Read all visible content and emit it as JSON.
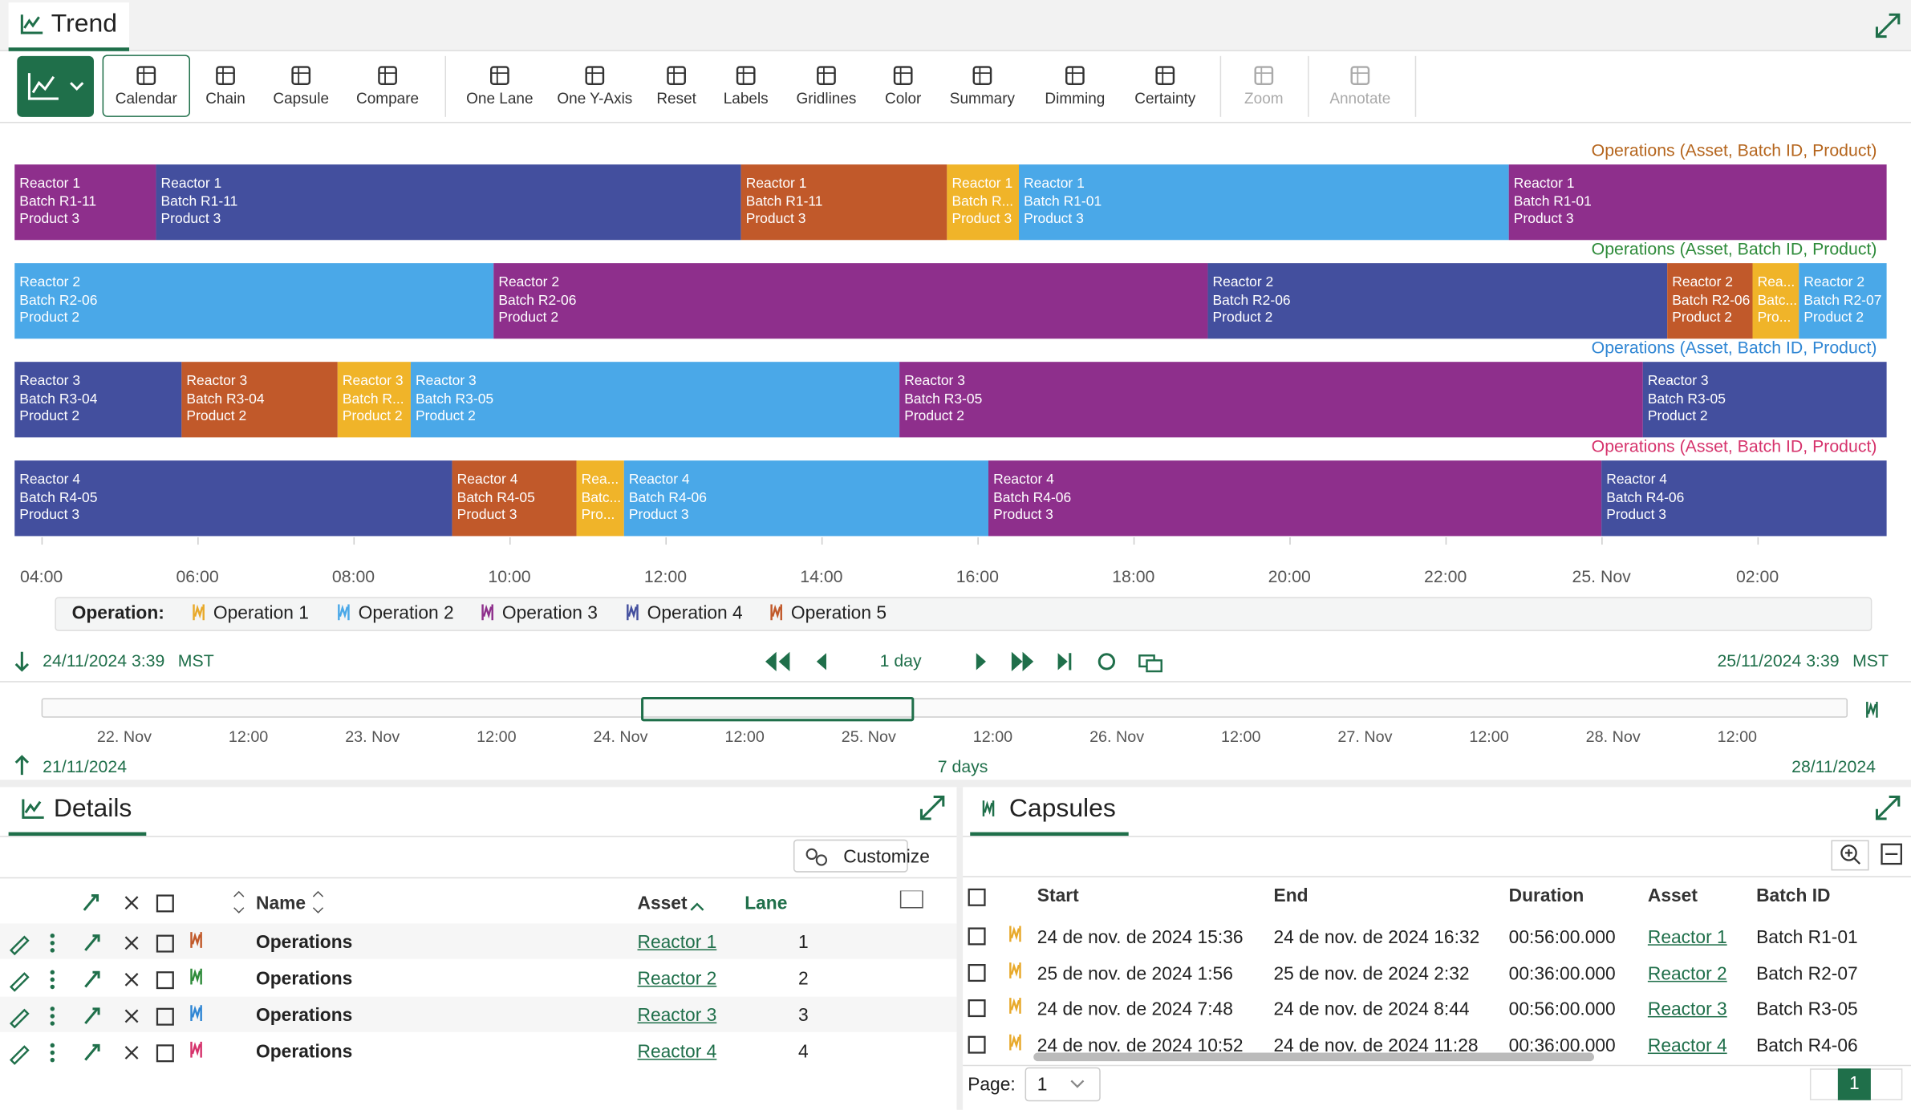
{
  "trend": {
    "title": "Trend",
    "toolbar": [
      "Calendar",
      "Chain",
      "Capsule",
      "Compare",
      "One Lane",
      "One Y-Axis",
      "Reset",
      "Labels",
      "Gridlines",
      "Color",
      "Summary",
      "Dimming",
      "Certainty",
      "Zoom",
      "Annotate"
    ],
    "lanes": [
      {
        "label": "Operations (Asset, Batch ID, Product)",
        "color": "#b5651d",
        "capsules": [
          {
            "lines": [
              "Reactor 1",
              "Batch R1-11",
              "Product 3"
            ],
            "color": "#8e2f8c"
          },
          {
            "lines": [
              "Reactor 1",
              "Batch R1-11",
              "Product 3"
            ],
            "color": "#434f9e"
          },
          {
            "lines": [
              "Reactor 1",
              "Batch R1-11",
              "Product 3"
            ],
            "color": "#c1592a"
          },
          {
            "lines": [
              "Reactor 1",
              "Batch R...",
              "Product 3"
            ],
            "color": "#f0b429"
          },
          {
            "lines": [
              "Reactor 1",
              "Batch R1-01",
              "Product 3"
            ],
            "color": "#4aa8e8"
          },
          {
            "lines": [
              "Reactor 1",
              "Batch R1-01",
              "Product 3"
            ],
            "color": "#8e2f8c"
          }
        ]
      },
      {
        "label": "Operations (Asset, Batch ID, Product)",
        "color": "#2e8b3a",
        "capsules": [
          {
            "lines": [
              "Reactor 2",
              "Batch R2-06",
              "Product 2"
            ],
            "color": "#4aa8e8"
          },
          {
            "lines": [
              "Reactor 2",
              "Batch R2-06",
              "Product 2"
            ],
            "color": "#8e2f8c"
          },
          {
            "lines": [
              "Reactor 2",
              "Batch R2-06",
              "Product 2"
            ],
            "color": "#434f9e"
          },
          {
            "lines": [
              "Reactor 2",
              "Batch R2-06",
              "Product 2"
            ],
            "color": "#c1592a"
          },
          {
            "lines": [
              "Rea...",
              "Batc...",
              "Pro..."
            ],
            "color": "#f0b429"
          },
          {
            "lines": [
              "Reactor 2",
              "Batch R2-07",
              "Product 2"
            ],
            "color": "#4aa8e8"
          }
        ]
      },
      {
        "label": "Operations (Asset, Batch ID, Product)",
        "color": "#2f86d4",
        "capsules": [
          {
            "lines": [
              "Reactor 3",
              "Batch R3-04",
              "Product 2"
            ],
            "color": "#434f9e"
          },
          {
            "lines": [
              "Reactor 3",
              "Batch R3-04",
              "Product 2"
            ],
            "color": "#c1592a"
          },
          {
            "lines": [
              "Reactor 3",
              "Batch R...",
              "Product 2"
            ],
            "color": "#f0b429"
          },
          {
            "lines": [
              "Reactor 3",
              "Batch R3-05",
              "Product 2"
            ],
            "color": "#4aa8e8"
          },
          {
            "lines": [
              "Reactor 3",
              "Batch R3-05",
              "Product 2"
            ],
            "color": "#8e2f8c"
          },
          {
            "lines": [
              "Reactor 3",
              "Batch R3-05",
              "Product 2"
            ],
            "color": "#434f9e"
          }
        ]
      },
      {
        "label": "Operations (Asset, Batch ID, Product)",
        "color": "#d6336c",
        "capsules": [
          {
            "lines": [
              "Reactor 4",
              "Batch R4-05",
              "Product 3"
            ],
            "color": "#434f9e"
          },
          {
            "lines": [
              "Reactor 4",
              "Batch R4-05",
              "Product 3"
            ],
            "color": "#c1592a"
          },
          {
            "lines": [
              "Rea...",
              "Batc...",
              "Pro..."
            ],
            "color": "#f0b429"
          },
          {
            "lines": [
              "Reactor 4",
              "Batch R4-06",
              "Product 3"
            ],
            "color": "#4aa8e8"
          },
          {
            "lines": [
              "Reactor 4",
              "Batch R4-06",
              "Product 3"
            ],
            "color": "#8e2f8c"
          },
          {
            "lines": [
              "Reactor 4",
              "Batch R4-06",
              "Product 3"
            ],
            "color": "#434f9e"
          }
        ]
      }
    ],
    "axis_ticks": [
      "04:00",
      "06:00",
      "08:00",
      "10:00",
      "12:00",
      "14:00",
      "16:00",
      "18:00",
      "20:00",
      "22:00",
      "25. Nov",
      "02:00"
    ],
    "legend": {
      "title": "Operation:",
      "items": [
        {
          "name": "Operation 1",
          "color": "#e8a92a"
        },
        {
          "name": "Operation 2",
          "color": "#4aa8e8"
        },
        {
          "name": "Operation 3",
          "color": "#8e2f8c"
        },
        {
          "name": "Operation 4",
          "color": "#434f9e"
        },
        {
          "name": "Operation 5",
          "color": "#c1592a"
        }
      ]
    },
    "range": {
      "start": "24/11/2024 3:39",
      "start_tz": "MST",
      "duration": "1 day",
      "end": "25/11/2024 3:39",
      "end_tz": "MST"
    },
    "navigator": {
      "ticks": [
        "22. Nov",
        "12:00",
        "23. Nov",
        "12:00",
        "24. Nov",
        "12:00",
        "25. Nov",
        "12:00",
        "26. Nov",
        "12:00",
        "27. Nov",
        "12:00",
        "28. Nov",
        "12:00"
      ],
      "start": "21/11/2024",
      "duration": "7 days",
      "end": "28/11/2024"
    }
  },
  "details": {
    "title": "Details",
    "customize": "Customize",
    "columns": [
      "Name",
      "Asset",
      "Lane"
    ],
    "rows": [
      {
        "name": "Operations",
        "asset": "Reactor 1",
        "lane": "1",
        "color": "#c1592a"
      },
      {
        "name": "Operations",
        "asset": "Reactor 2",
        "lane": "2",
        "color": "#2e8b3a"
      },
      {
        "name": "Operations",
        "asset": "Reactor 3",
        "lane": "3",
        "color": "#2f86d4"
      },
      {
        "name": "Operations",
        "asset": "Reactor 4",
        "lane": "4",
        "color": "#d6336c"
      }
    ]
  },
  "capsules": {
    "title": "Capsules",
    "columns": [
      "Start",
      "End",
      "Duration",
      "Asset",
      "Batch ID"
    ],
    "rows": [
      [
        "24 de nov. de 2024 15:36",
        "24 de nov. de 2024 16:32",
        "00:56:00.000",
        "Reactor 1",
        "Batch R1-01"
      ],
      [
        "25 de nov. de 2024 1:56",
        "25 de nov. de 2024 2:32",
        "00:36:00.000",
        "Reactor 2",
        "Batch R2-07"
      ],
      [
        "24 de nov. de 2024 7:48",
        "24 de nov. de 2024 8:44",
        "00:56:00.000",
        "Reactor 3",
        "Batch R3-05"
      ],
      [
        "24 de nov. de 2024 10:52",
        "24 de nov. de 2024 11:28",
        "00:36:00.000",
        "Reactor 4",
        "Batch R4-06"
      ]
    ],
    "page_label": "Page:",
    "page_select": "1",
    "page_current": "1"
  }
}
